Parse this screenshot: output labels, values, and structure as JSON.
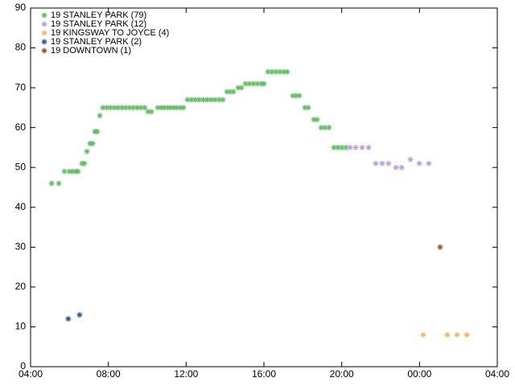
{
  "chart_data": {
    "type": "scatter",
    "xlim": [
      4,
      28
    ],
    "xticks": [
      {
        "value": 4,
        "label": "04:00"
      },
      {
        "value": 8,
        "label": "08:00"
      },
      {
        "value": 12,
        "label": "12:00"
      },
      {
        "value": 16,
        "label": "16:00"
      },
      {
        "value": 20,
        "label": "20:00"
      },
      {
        "value": 24,
        "label": "00:00"
      },
      {
        "value": 28,
        "label": "04:00"
      }
    ],
    "ylim": [
      0,
      90
    ],
    "yticks": [
      0,
      10,
      20,
      30,
      40,
      50,
      60,
      70,
      80,
      90
    ],
    "legend": "top-left",
    "series": [
      {
        "name": "19 STANLEY PARK (79)",
        "color": "#66bb66",
        "x": [
          5.08,
          5.45,
          5.74,
          5.99,
          6.15,
          6.32,
          6.44,
          6.65,
          6.77,
          6.9,
          7.06,
          7.19,
          7.31,
          7.43,
          7.56,
          7.72,
          7.92,
          8.11,
          8.31,
          8.5,
          8.7,
          8.89,
          9.09,
          9.28,
          9.48,
          9.67,
          9.87,
          10.04,
          10.21,
          10.54,
          10.71,
          10.87,
          11.04,
          11.2,
          11.37,
          11.53,
          11.7,
          11.86,
          12.07,
          12.27,
          12.47,
          12.67,
          12.88,
          13.08,
          13.28,
          13.48,
          13.69,
          13.89,
          14.1,
          14.26,
          14.43,
          14.68,
          14.84,
          15.05,
          15.25,
          15.46,
          15.67,
          15.88,
          16.0,
          16.21,
          16.41,
          16.62,
          16.83,
          17.03,
          17.2,
          17.49,
          17.65,
          17.82,
          18.11,
          18.28,
          18.57,
          18.73,
          18.94,
          19.14,
          19.35,
          19.6,
          19.81,
          20.01,
          20.22
        ],
        "values": [
          46,
          46,
          49,
          49,
          49,
          49,
          49,
          51,
          51,
          54,
          56,
          56,
          59,
          59,
          63,
          65,
          65,
          65,
          65,
          65,
          65,
          65,
          65,
          65,
          65,
          65,
          65,
          64,
          64,
          65,
          65,
          65,
          65,
          65,
          65,
          65,
          65,
          65,
          67,
          67,
          67,
          67,
          67,
          67,
          67,
          67,
          67,
          67,
          69,
          69,
          69,
          70,
          70,
          71,
          71,
          71,
          71,
          71,
          71,
          74,
          74,
          74,
          74,
          74,
          74,
          68,
          68,
          68,
          65,
          65,
          62,
          62,
          60,
          60,
          60,
          55,
          55,
          55,
          55
        ]
      },
      {
        "name": "19 STANLEY PARK (12)",
        "color": "#b9a0d8",
        "x": [
          20.43,
          20.72,
          21.05,
          21.38,
          21.75,
          22.08,
          22.41,
          22.79,
          23.08,
          23.53,
          23.99,
          24.48
        ],
        "values": [
          55,
          55,
          55,
          55,
          51,
          51,
          51,
          50,
          50,
          52,
          51,
          51
        ]
      },
      {
        "name": "19 KINGSWAY TO  JOYCE (4)",
        "color": "#f5b36b",
        "x": [
          24.19,
          25.43,
          25.93,
          26.43
        ],
        "values": [
          8,
          8,
          8,
          8
        ]
      },
      {
        "name": "19 STANLEY PARK (2)",
        "color": "#1f5fa8",
        "x": [
          5.94,
          6.52
        ],
        "values": [
          12,
          13
        ]
      },
      {
        "name": "19 DOWNTOWN (1)",
        "color": "#a0522d",
        "x": [
          25.06
        ],
        "values": [
          30
        ]
      }
    ]
  }
}
